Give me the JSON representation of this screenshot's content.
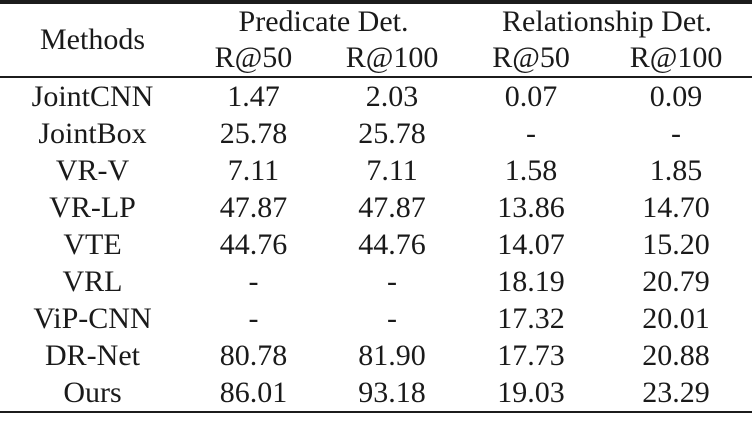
{
  "table": {
    "methods_label": "Methods",
    "groups": [
      "Predicate Det.",
      "Relationship Det."
    ],
    "subheaders": [
      "R@50",
      "R@100",
      "R@50",
      "R@100"
    ],
    "rows": [
      {
        "method": "JointCNN",
        "values": [
          "1.47",
          "2.03",
          "0.07",
          "0.09"
        ],
        "bold": false
      },
      {
        "method": "JointBox",
        "values": [
          "25.78",
          "25.78",
          "-",
          "-"
        ],
        "bold": false
      },
      {
        "method": "VR-V",
        "values": [
          "7.11",
          "7.11",
          "1.58",
          "1.85"
        ],
        "bold": false
      },
      {
        "method": "VR-LP",
        "values": [
          "47.87",
          "47.87",
          "13.86",
          "14.70"
        ],
        "bold": false
      },
      {
        "method": "VTE",
        "values": [
          "44.76",
          "44.76",
          "14.07",
          "15.20"
        ],
        "bold": false
      },
      {
        "method": "VRL",
        "values": [
          "-",
          "-",
          "18.19",
          "20.79"
        ],
        "bold": false
      },
      {
        "method": "ViP-CNN",
        "values": [
          "-",
          "-",
          "17.32",
          "20.01"
        ],
        "bold": false
      },
      {
        "method": "DR-Net",
        "values": [
          "80.78",
          "81.90",
          "17.73",
          "20.88"
        ],
        "bold": false
      },
      {
        "method": "Ours",
        "values": [
          "86.01",
          "93.18",
          "19.03",
          "23.29"
        ],
        "bold": true
      }
    ],
    "colors": {
      "text": "#1a1a1a",
      "background": "#ffffff",
      "rule": "#1c1c1c"
    }
  }
}
